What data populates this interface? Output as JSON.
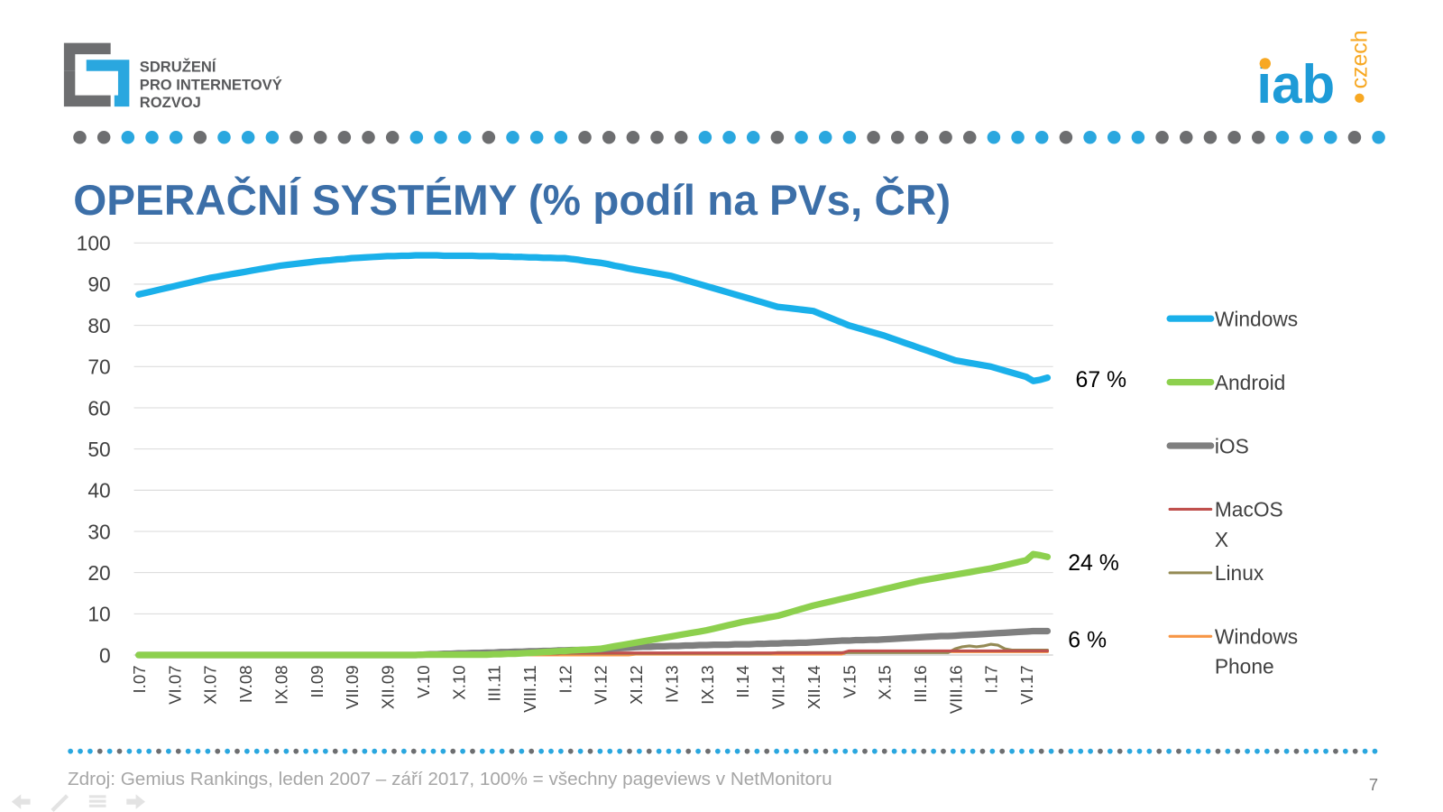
{
  "header": {
    "logo_lines": [
      "SDRUŽENÍ",
      "PRO INTERNETOVÝ",
      "ROZVOJ"
    ],
    "brand": "iab",
    "brand_suffix": "czech"
  },
  "footer": {
    "source": "Zdroj: Gemius Rankings,  leden 2007 – září 2017, 100% = všechny pageviews v NetMonitoru",
    "page": "7"
  },
  "chart_data": {
    "type": "line",
    "title": "OPERAČNÍ SYSTÉMY (% podíl na PVs, ČR)",
    "categories": [
      "I.07",
      null,
      null,
      null,
      null,
      "VI.07",
      null,
      null,
      null,
      null,
      "XI.07",
      null,
      null,
      null,
      null,
      "IV.08",
      null,
      null,
      null,
      null,
      "IX.08",
      null,
      null,
      null,
      null,
      "II.09",
      null,
      null,
      null,
      null,
      "VII.09",
      null,
      null,
      null,
      null,
      "XII.09",
      null,
      null,
      null,
      null,
      "V.10",
      null,
      null,
      null,
      null,
      "X.10",
      null,
      null,
      null,
      null,
      "III.11",
      null,
      null,
      null,
      null,
      "VIII.11",
      null,
      null,
      null,
      null,
      "I.12",
      null,
      null,
      null,
      null,
      "VI.12",
      null,
      null,
      null,
      null,
      "XI.12",
      null,
      null,
      null,
      null,
      "IV.13",
      null,
      null,
      null,
      null,
      "IX.13",
      null,
      null,
      null,
      null,
      "II.14",
      null,
      null,
      null,
      null,
      "VII.14",
      null,
      null,
      null,
      null,
      "XII.14",
      null,
      null,
      null,
      null,
      "V.15",
      null,
      null,
      null,
      null,
      "X.15",
      null,
      null,
      null,
      null,
      "III.16",
      null,
      null,
      null,
      null,
      "VIII.16",
      null,
      null,
      null,
      null,
      "I.17",
      null,
      null,
      null,
      null,
      "VI.17",
      null,
      null,
      null
    ],
    "ylim": [
      0,
      100
    ],
    "yticks": [
      0,
      10,
      20,
      30,
      40,
      50,
      60,
      70,
      80,
      90,
      100
    ],
    "grid": true,
    "legend": "right",
    "series": [
      {
        "name": "Windows",
        "color": "#1ab0ea",
        "values": [
          87.5,
          87.9,
          88.3,
          88.7,
          89.1,
          89.5,
          89.9,
          90.3,
          90.7,
          91.1,
          91.5,
          91.8,
          92.1,
          92.4,
          92.7,
          93.0,
          93.3,
          93.6,
          93.9,
          94.2,
          94.5,
          94.7,
          94.9,
          95.1,
          95.3,
          95.5,
          95.7,
          95.8,
          96.0,
          96.1,
          96.3,
          96.4,
          96.5,
          96.6,
          96.7,
          96.8,
          96.8,
          96.9,
          96.9,
          97.0,
          97.0,
          97.0,
          97.0,
          96.9,
          96.9,
          96.9,
          96.9,
          96.9,
          96.8,
          96.8,
          96.8,
          96.7,
          96.7,
          96.6,
          96.6,
          96.5,
          96.5,
          96.4,
          96.4,
          96.3,
          96.3,
          96.1,
          95.9,
          95.6,
          95.4,
          95.2,
          94.9,
          94.5,
          94.2,
          93.8,
          93.5,
          93.2,
          92.9,
          92.6,
          92.3,
          92.0,
          91.5,
          91.0,
          90.5,
          90.0,
          89.5,
          89.0,
          88.5,
          88.0,
          87.5,
          87.0,
          86.5,
          86.0,
          85.5,
          85.0,
          84.5,
          84.3,
          84.1,
          83.9,
          83.7,
          83.5,
          82.8,
          82.1,
          81.4,
          80.7,
          80.0,
          79.5,
          79.0,
          78.5,
          78.0,
          77.5,
          76.9,
          76.3,
          75.7,
          75.1,
          74.5,
          73.9,
          73.3,
          72.7,
          72.1,
          71.5,
          71.2,
          70.9,
          70.6,
          70.3,
          70.0,
          69.5,
          69.0,
          68.5,
          68.0,
          67.5,
          66.5,
          66.8,
          67.3
        ]
      },
      {
        "name": "Android",
        "color": "#8dd04e",
        "values": [
          0,
          0,
          0,
          0,
          0,
          0,
          0,
          0,
          0,
          0,
          0,
          0,
          0,
          0,
          0,
          0,
          0,
          0,
          0,
          0,
          0,
          0,
          0,
          0,
          0,
          0,
          0,
          0,
          0,
          0,
          0,
          0,
          0,
          0,
          0,
          0,
          0,
          0,
          0,
          0,
          0.1,
          0.1,
          0.1,
          0.1,
          0.1,
          0.1,
          0.1,
          0.1,
          0.1,
          0.1,
          0.2,
          0.2,
          0.3,
          0.3,
          0.4,
          0.5,
          0.6,
          0.7,
          0.8,
          0.9,
          1.0,
          1.1,
          1.2,
          1.3,
          1.4,
          1.5,
          1.8,
          2.1,
          2.4,
          2.7,
          3.0,
          3.3,
          3.6,
          3.9,
          4.2,
          4.5,
          4.8,
          5.1,
          5.4,
          5.7,
          6.0,
          6.4,
          6.8,
          7.2,
          7.6,
          8.0,
          8.3,
          8.6,
          8.9,
          9.2,
          9.5,
          10.0,
          10.5,
          11.0,
          11.5,
          12.0,
          12.4,
          12.8,
          13.2,
          13.6,
          14.0,
          14.4,
          14.8,
          15.2,
          15.6,
          16.0,
          16.4,
          16.8,
          17.2,
          17.6,
          18.0,
          18.3,
          18.6,
          18.9,
          19.2,
          19.5,
          19.8,
          20.1,
          20.4,
          20.7,
          21.0,
          21.4,
          21.8,
          22.2,
          22.6,
          23.0,
          24.5,
          24.2,
          23.8
        ]
      },
      {
        "name": "iOS",
        "color": "#7f7f7f",
        "values": [
          0,
          0,
          0,
          0,
          0,
          0,
          0,
          0,
          0,
          0,
          0,
          0,
          0,
          0,
          0,
          0,
          0,
          0,
          0,
          0,
          0,
          0,
          0,
          0,
          0,
          0,
          0,
          0,
          0,
          0,
          0,
          0,
          0,
          0,
          0,
          0,
          0,
          0,
          0,
          0,
          0.1,
          0.2,
          0.2,
          0.3,
          0.3,
          0.4,
          0.4,
          0.5,
          0.5,
          0.6,
          0.6,
          0.7,
          0.7,
          0.8,
          0.8,
          0.9,
          0.9,
          1.0,
          1.0,
          1.1,
          1.1,
          1.2,
          1.2,
          1.3,
          1.3,
          1.4,
          1.5,
          1.6,
          1.7,
          1.8,
          1.9,
          2.0,
          2.0,
          2.1,
          2.1,
          2.2,
          2.2,
          2.3,
          2.3,
          2.4,
          2.4,
          2.5,
          2.5,
          2.5,
          2.6,
          2.6,
          2.6,
          2.7,
          2.7,
          2.8,
          2.8,
          2.9,
          2.9,
          3.0,
          3.0,
          3.1,
          3.2,
          3.3,
          3.4,
          3.5,
          3.5,
          3.6,
          3.6,
          3.7,
          3.7,
          3.8,
          3.9,
          4.0,
          4.1,
          4.2,
          4.3,
          4.4,
          4.5,
          4.6,
          4.6,
          4.7,
          4.8,
          4.9,
          5.0,
          5.1,
          5.2,
          5.3,
          5.4,
          5.5,
          5.6,
          5.7,
          5.8,
          5.8,
          5.8
        ]
      },
      {
        "name": "MacOS X",
        "color": "#c0504d",
        "values": [
          0.3,
          0.3,
          0.3,
          0.3,
          0.3,
          0.3,
          0.3,
          0.3,
          0.3,
          0.3,
          0.3,
          0.3,
          0.3,
          0.3,
          0.3,
          0.3,
          0.3,
          0.3,
          0.3,
          0.3,
          0.3,
          0.3,
          0.3,
          0.3,
          0.3,
          0.3,
          0.3,
          0.3,
          0.3,
          0.3,
          0.3,
          0.3,
          0.3,
          0.3,
          0.3,
          0.3,
          0.3,
          0.3,
          0.3,
          0.3,
          0.3,
          0.3,
          0.3,
          0.3,
          0.3,
          0.3,
          0.3,
          0.3,
          0.3,
          0.3,
          0.3,
          0.3,
          0.3,
          0.3,
          0.3,
          0.3,
          0.3,
          0.3,
          0.3,
          0.3,
          0.5,
          0.5,
          0.5,
          0.5,
          0.5,
          0.5,
          0.5,
          0.5,
          0.5,
          0.5,
          0.5,
          0.5,
          0.5,
          0.5,
          0.5,
          0.5,
          0.5,
          0.5,
          0.5,
          0.5,
          0.5,
          0.5,
          0.5,
          0.5,
          0.5,
          0.5,
          0.5,
          0.5,
          0.5,
          0.5,
          0.5,
          0.5,
          0.5,
          0.5,
          0.5,
          0.5,
          0.5,
          0.5,
          0.5,
          0.5,
          1.0,
          1.0,
          1.0,
          1.0,
          1.0,
          1.0,
          1.0,
          1.0,
          1.0,
          1.0,
          1.0,
          1.0,
          1.0,
          1.0,
          1.0,
          1.0,
          1.0,
          1.0,
          1.0,
          1.0,
          1.0,
          1.0,
          1.0,
          1.0,
          1.0,
          1.0,
          1.0,
          1.0,
          1.0
        ]
      },
      {
        "name": "Linux",
        "color": "#948a54",
        "values": [
          0.4,
          0.4,
          0.4,
          0.4,
          0.4,
          0.4,
          0.4,
          0.4,
          0.4,
          0.4,
          0.4,
          0.4,
          0.4,
          0.4,
          0.4,
          0.4,
          0.4,
          0.4,
          0.4,
          0.4,
          0.4,
          0.4,
          0.4,
          0.4,
          0.4,
          0.4,
          0.4,
          0.4,
          0.4,
          0.4,
          0.4,
          0.4,
          0.4,
          0.4,
          0.4,
          0.4,
          0.4,
          0.4,
          0.4,
          0.4,
          0.4,
          0.4,
          0.4,
          0.4,
          0.4,
          0.4,
          0.4,
          0.4,
          0.4,
          0.4,
          0.4,
          0.4,
          0.4,
          0.4,
          0.4,
          0.4,
          0.4,
          0.4,
          0.4,
          0.4,
          0.4,
          0.4,
          0.4,
          0.4,
          0.4,
          0.4,
          0.4,
          0.4,
          0.4,
          0.4,
          0.4,
          0.4,
          0.4,
          0.4,
          0.4,
          0.4,
          0.4,
          0.4,
          0.4,
          0.4,
          0.4,
          0.4,
          0.4,
          0.4,
          0.4,
          0.4,
          0.4,
          0.4,
          0.4,
          0.4,
          0.6,
          0.6,
          0.6,
          0.6,
          0.6,
          0.6,
          0.6,
          0.6,
          0.6,
          0.6,
          0.6,
          0.6,
          0.6,
          0.6,
          0.6,
          0.6,
          0.6,
          0.6,
          0.6,
          0.6,
          0.6,
          0.6,
          0.6,
          0.6,
          0.6,
          1.5,
          2.0,
          2.2,
          2.0,
          2.2,
          2.6,
          2.4,
          1.5,
          1.2,
          1.2,
          1.2,
          1.2,
          1.2,
          1.2
        ]
      },
      {
        "name": "Windows Phone",
        "color": "#f79646",
        "values": [
          0,
          0,
          0,
          0,
          0,
          0,
          0,
          0,
          0,
          0,
          0,
          0,
          0,
          0,
          0,
          0,
          0,
          0,
          0,
          0,
          0,
          0,
          0,
          0,
          0,
          0,
          0,
          0,
          0,
          0,
          0,
          0,
          0,
          0,
          0,
          0,
          0,
          0,
          0,
          0,
          0,
          0,
          0,
          0,
          0,
          0,
          0,
          0,
          0,
          0,
          0,
          0,
          0,
          0,
          0,
          0,
          0,
          0,
          0,
          0,
          0,
          0,
          0,
          0,
          0,
          0,
          0,
          0,
          0,
          0,
          0.2,
          0.2,
          0.2,
          0.2,
          0.2,
          0.2,
          0.2,
          0.2,
          0.2,
          0.2,
          0.2,
          0.2,
          0.2,
          0.2,
          0.2,
          0.2,
          0.2,
          0.2,
          0.2,
          0.2,
          0.2,
          0.2,
          0.2,
          0.2,
          0.2,
          0.2,
          0.2,
          0.2,
          0.2,
          0.2,
          0.8,
          0.8,
          0.8,
          0.8,
          0.8,
          0.8,
          0.8,
          0.8,
          0.8,
          0.8,
          0.8,
          0.8,
          0.8,
          0.8,
          0.8,
          0.8,
          0.8,
          0.8,
          0.8,
          0.8,
          0.8,
          0.8,
          0.8,
          0.8,
          0.8,
          0.8,
          0.8,
          0.8,
          0.8
        ]
      }
    ],
    "annotations": [
      "67 %",
      "24 %",
      "6 %"
    ]
  }
}
